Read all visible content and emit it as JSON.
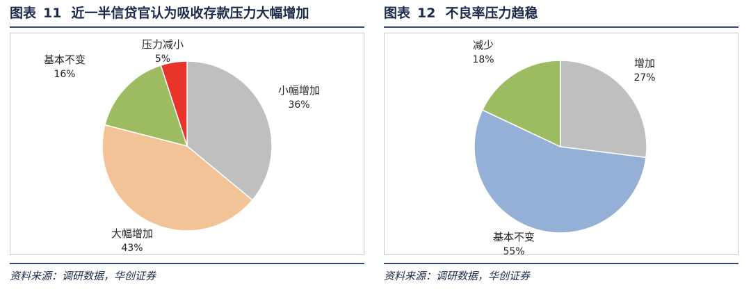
{
  "left": {
    "title_prefix": "图表",
    "title_number": "11",
    "title_text": "近一半信贷官认为吸收存款压力大幅增加",
    "source": "资料来源：调研数据，华创证券"
  },
  "right": {
    "title_prefix": "图表",
    "title_number": "12",
    "title_text": "不良率压力趋稳",
    "source": "资料来源：调研数据，华创证券"
  },
  "colors": {
    "title": "#1b2a48",
    "rule": "#2e4a7a"
  },
  "chart_data": [
    {
      "type": "pie",
      "title": "近一半信贷官认为吸收存款压力大幅增加",
      "slices": [
        {
          "label": "小幅增加",
          "value": 36,
          "value_label": "36%",
          "color": "#bfbfbf"
        },
        {
          "label": "大幅增加",
          "value": 43,
          "value_label": "43%",
          "color": "#f2c397"
        },
        {
          "label": "基本不变",
          "value": 16,
          "value_label": "16%",
          "color": "#9dbb61"
        },
        {
          "label": "压力减小",
          "value": 5,
          "value_label": "5%",
          "color": "#e8352b"
        }
      ]
    },
    {
      "type": "pie",
      "title": "不良率压力趋稳",
      "slices": [
        {
          "label": "增加",
          "value": 27,
          "value_label": "27%",
          "color": "#bfbfbf"
        },
        {
          "label": "基本不变",
          "value": 55,
          "value_label": "55%",
          "color": "#95b0d6"
        },
        {
          "label": "减少",
          "value": 18,
          "value_label": "18%",
          "color": "#9dbb61"
        }
      ]
    }
  ]
}
